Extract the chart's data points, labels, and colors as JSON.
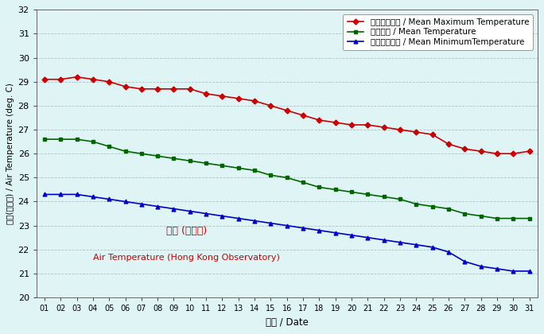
{
  "days": [
    1,
    2,
    3,
    4,
    5,
    6,
    7,
    8,
    9,
    10,
    11,
    12,
    13,
    14,
    15,
    16,
    17,
    18,
    19,
    20,
    21,
    22,
    23,
    24,
    25,
    26,
    27,
    28,
    29,
    30,
    31
  ],
  "day_labels": [
    "01",
    "02",
    "03",
    "04",
    "05",
    "06",
    "07",
    "08",
    "09",
    "10",
    "11",
    "12",
    "13",
    "14",
    "15",
    "16",
    "17",
    "18",
    "19",
    "20",
    "21",
    "22",
    "23",
    "24",
    "25",
    "26",
    "27",
    "28",
    "29",
    "30",
    "31"
  ],
  "mean_max": [
    29.1,
    29.1,
    29.2,
    29.1,
    29.0,
    28.8,
    28.7,
    28.7,
    28.7,
    28.7,
    28.5,
    28.4,
    28.3,
    28.2,
    28.0,
    27.8,
    27.6,
    27.4,
    27.3,
    27.2,
    27.2,
    27.1,
    27.0,
    26.9,
    26.8,
    26.4,
    26.2,
    26.1,
    26.0,
    26.0,
    26.1
  ],
  "mean_temp": [
    26.6,
    26.6,
    26.6,
    26.5,
    26.3,
    26.1,
    26.0,
    25.9,
    25.8,
    25.7,
    25.6,
    25.5,
    25.4,
    25.3,
    25.1,
    25.0,
    24.8,
    24.6,
    24.5,
    24.4,
    24.3,
    24.2,
    24.1,
    23.9,
    23.8,
    23.7,
    23.5,
    23.4,
    23.3,
    23.3,
    23.3
  ],
  "mean_min": [
    24.3,
    24.3,
    24.3,
    24.2,
    24.1,
    24.0,
    23.9,
    23.8,
    23.7,
    23.6,
    23.5,
    23.4,
    23.3,
    23.2,
    23.1,
    23.0,
    22.9,
    22.8,
    22.7,
    22.6,
    22.5,
    22.4,
    22.3,
    22.2,
    22.1,
    21.9,
    21.5,
    21.3,
    21.2,
    21.1,
    21.1
  ],
  "color_max": "#cc0000",
  "color_mean": "#006600",
  "color_min": "#0000cc",
  "bg_color": "#dff4f4",
  "ylabel_chinese": "氣溫(攝氏度)",
  "ylabel_english": "/ Air Temperature (deg. C)",
  "xlabel": "日期 / Date",
  "legend_max_zh": "平均最高氣溫",
  "legend_max_en": " / Mean Maximum Temperature",
  "legend_mean_zh": "平均氣溫",
  "legend_mean_en": " / Mean Temperature",
  "legend_min_zh": "平均最低氣溫",
  "legend_min_en": " / Mean MinimumTemperature",
  "annotation_zh": "氣溫 (天文台)",
  "annotation_en": "Air Temperature (Hong Kong Observatory)",
  "annotation_color": "#cc0000",
  "ylim_min": 20.0,
  "ylim_max": 32.0,
  "yticks": [
    20.0,
    21.0,
    22.0,
    23.0,
    24.0,
    25.0,
    26.0,
    27.0,
    28.0,
    29.0,
    30.0,
    31.0,
    32.0
  ]
}
